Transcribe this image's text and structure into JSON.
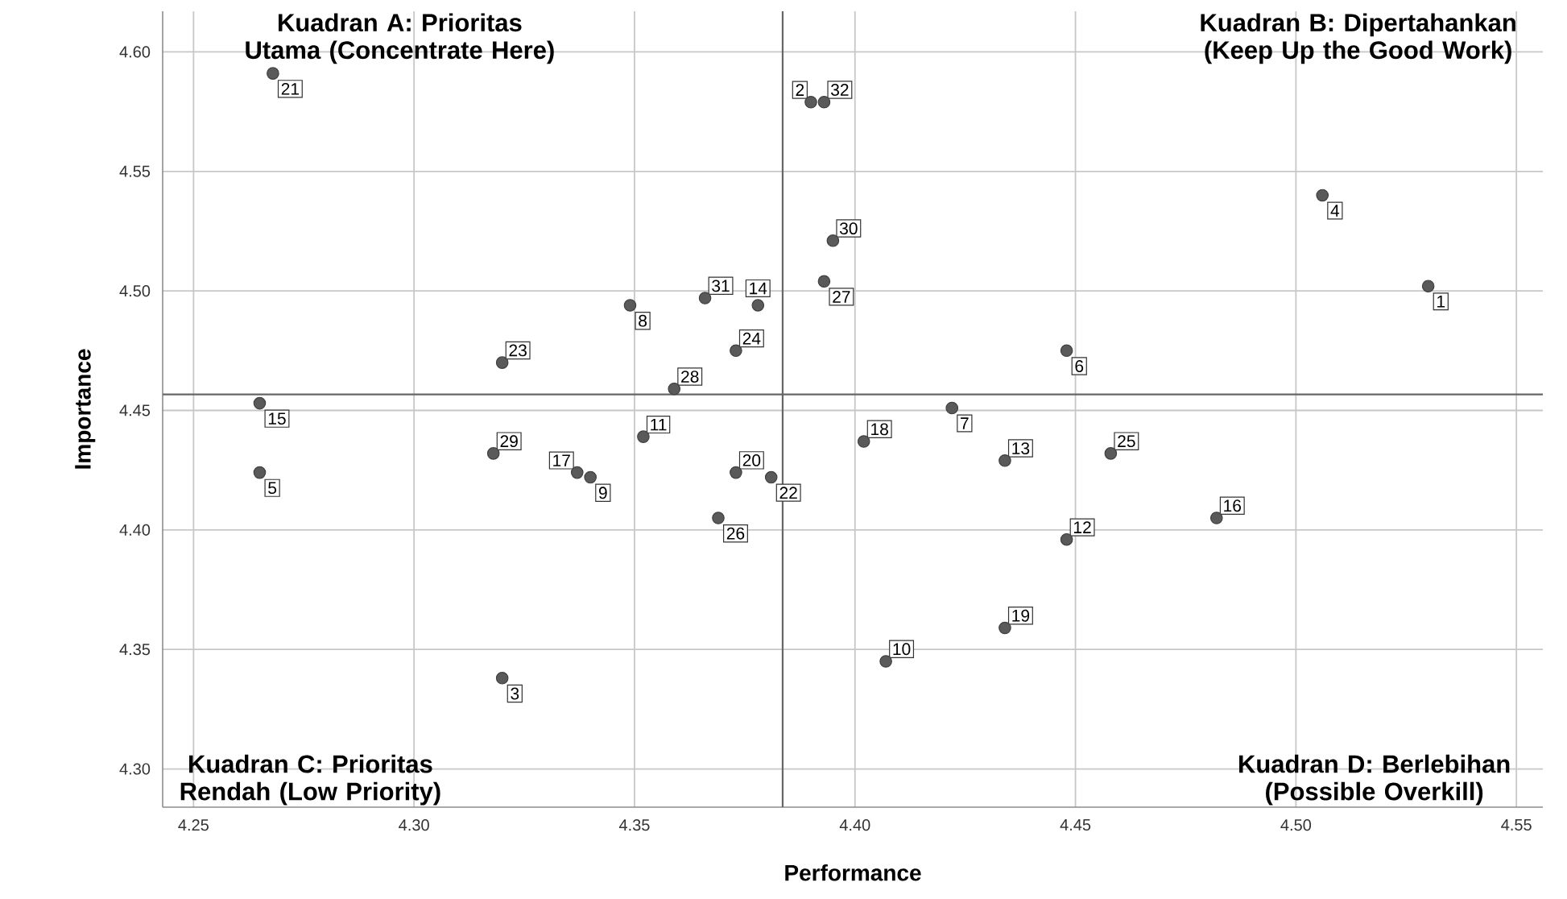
{
  "chart_data": {
    "type": "scatter",
    "xlabel": "Performance",
    "ylabel": "Importance",
    "xlim": [
      4.243,
      4.556
    ],
    "ylim": [
      4.284,
      4.617
    ],
    "xticks": [
      4.25,
      {
        "value": 4.3,
        "label": "4.30"
      },
      4.35,
      {
        "value": 4.4,
        "label": "4.40"
      },
      4.45,
      {
        "value": 4.5,
        "label": "4.50"
      },
      4.55
    ],
    "yticks": [
      {
        "value": 4.3,
        "label": "4.30"
      },
      4.35,
      {
        "value": 4.4,
        "label": "4.40"
      },
      4.45,
      {
        "value": 4.5,
        "label": "4.50"
      },
      4.55,
      {
        "value": 4.6,
        "label": "4.60"
      }
    ],
    "grid": true,
    "marker": "circle",
    "x": [
      4.53,
      4.39,
      4.32,
      4.506,
      4.265,
      4.448,
      4.422,
      4.349,
      4.34,
      4.407,
      4.352,
      4.448,
      4.434,
      4.378,
      4.265,
      4.482,
      4.337,
      4.402,
      4.434,
      4.373,
      4.268,
      4.381,
      4.32,
      4.373,
      4.458,
      4.369,
      4.393,
      4.359,
      4.318,
      4.395,
      4.366,
      4.393
    ],
    "series": [
      {
        "color": "#5a5a5a",
        "values": [
          4.502,
          4.579,
          4.338,
          4.54,
          4.424,
          4.475,
          4.451,
          4.494,
          4.422,
          4.345,
          4.439,
          4.396,
          4.429,
          4.494,
          4.453,
          4.405,
          4.424,
          4.437,
          4.359,
          4.424,
          4.591,
          4.422,
          4.47,
          4.475,
          4.432,
          4.405,
          4.504,
          4.459,
          4.432,
          4.521,
          4.497,
          4.579
        ]
      }
    ],
    "ref_lines": [
      {
        "axis": "x",
        "value": 4.3836
      },
      {
        "axis": "y",
        "value": 4.4567
      }
    ],
    "annotations": [
      "Kuadran A: Prioritas Utama (Concentrate Here)",
      "Kuadran B: Dipertahankan (Keep Up the Good Work)",
      "Kuadran C: Prioritas Rendah (Low Priority)",
      "Kuadran D: Berlebihan (Possible Overkill)",
      {
        "text": "1",
        "x": 4.53,
        "y": 4.502
      },
      {
        "text": "2",
        "x": 4.39,
        "y": 4.579
      },
      {
        "text": "3",
        "x": 4.32,
        "y": 4.338
      },
      {
        "text": "4",
        "x": 4.506,
        "y": 4.54
      },
      {
        "text": "5",
        "x": 4.265,
        "y": 4.424
      },
      {
        "text": "6",
        "x": 4.448,
        "y": 4.475
      },
      {
        "text": "7",
        "x": 4.422,
        "y": 4.451
      },
      {
        "text": "8",
        "x": 4.349,
        "y": 4.494
      },
      {
        "text": "9",
        "x": 4.34,
        "y": 4.422
      },
      {
        "text": "10",
        "x": 4.407,
        "y": 4.345
      },
      {
        "text": "11",
        "x": 4.352,
        "y": 4.439
      },
      {
        "text": "12",
        "x": 4.448,
        "y": 4.396
      },
      {
        "text": "13",
        "x": 4.434,
        "y": 4.429
      },
      {
        "text": "14",
        "x": 4.378,
        "y": 4.494
      },
      {
        "text": "15",
        "x": 4.265,
        "y": 4.453
      },
      {
        "text": "16",
        "x": 4.482,
        "y": 4.405
      },
      {
        "text": "17",
        "x": 4.337,
        "y": 4.424
      },
      {
        "text": "18",
        "x": 4.402,
        "y": 4.437
      },
      {
        "text": "19",
        "x": 4.434,
        "y": 4.359
      },
      {
        "text": "20",
        "x": 4.373,
        "y": 4.424
      },
      {
        "text": "21",
        "x": 4.268,
        "y": 4.591
      },
      {
        "text": "22",
        "x": 4.381,
        "y": 4.422
      },
      {
        "text": "23",
        "x": 4.32,
        "y": 4.47
      },
      {
        "text": "24",
        "x": 4.373,
        "y": 4.475
      },
      {
        "text": "25",
        "x": 4.458,
        "y": 4.432
      },
      {
        "text": "26",
        "x": 4.369,
        "y": 4.405
      },
      {
        "text": "27",
        "x": 4.393,
        "y": 4.504
      },
      {
        "text": "28",
        "x": 4.359,
        "y": 4.459
      },
      {
        "text": "29",
        "x": 4.318,
        "y": 4.432
      },
      {
        "text": "30",
        "x": 4.395,
        "y": 4.521
      },
      {
        "text": "31",
        "x": 4.366,
        "y": 4.497
      },
      {
        "text": "32",
        "x": 4.393,
        "y": 4.579
      }
    ]
  }
}
